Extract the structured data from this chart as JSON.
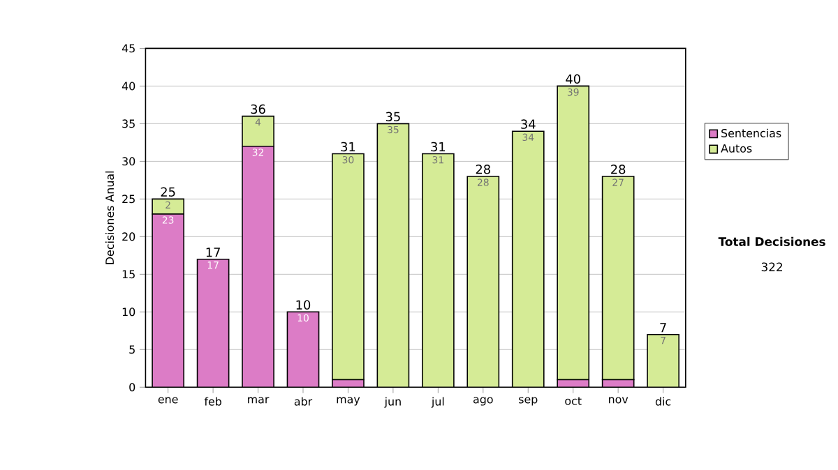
{
  "chart_data": {
    "type": "bar",
    "stacked": true,
    "ylabel": "Decisiones Anual",
    "categories": [
      "ene",
      "feb",
      "mar",
      "abr",
      "may",
      "jun",
      "jul",
      "ago",
      "sep",
      "oct",
      "nov",
      "dic"
    ],
    "series": [
      {
        "name": "Sentencias",
        "color": "#dc7cc6",
        "values": [
          23,
          17,
          32,
          10,
          1,
          0,
          0,
          0,
          0,
          1,
          1,
          0
        ],
        "value_labels": [
          "23",
          "17",
          "32",
          "10",
          null,
          null,
          null,
          null,
          null,
          null,
          null,
          null
        ]
      },
      {
        "name": "Autos",
        "color": "#d5eb96",
        "values": [
          2,
          0,
          4,
          0,
          30,
          35,
          31,
          28,
          34,
          39,
          27,
          7
        ],
        "value_labels": [
          "2",
          null,
          "4",
          null,
          "30",
          "35",
          "31",
          "28",
          "34",
          "39",
          "27",
          "7"
        ]
      }
    ],
    "totals": [
      "25",
      "17",
      "36",
      "10",
      "31",
      "35",
      "31",
      "28",
      "34",
      "40",
      "28",
      "7"
    ],
    "ylim": [
      0,
      45
    ],
    "yticks": [
      0,
      5,
      10,
      15,
      20,
      25,
      30,
      35,
      40,
      45
    ],
    "grid": "y",
    "legend": "right",
    "annotations": [
      "**Total Decisiones**",
      "322"
    ]
  }
}
